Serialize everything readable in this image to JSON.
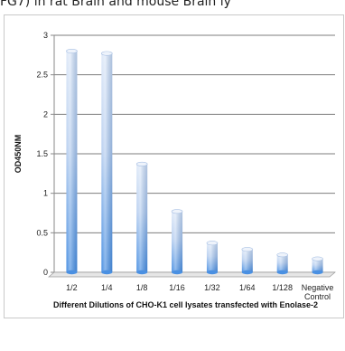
{
  "header": {
    "text": "FG7) in rat Brain and mouse Brain ly"
  },
  "chart_data": {
    "type": "bar",
    "categories": [
      "1/2",
      "1/4",
      "1/8",
      "1/16",
      "1/32",
      "1/64",
      "1/128",
      "Negative Control"
    ],
    "category_lines": [
      [
        "1/2"
      ],
      [
        "1/4"
      ],
      [
        "1/8"
      ],
      [
        "1/16"
      ],
      [
        "1/32"
      ],
      [
        "1/64"
      ],
      [
        "1/128"
      ],
      [
        "Negative",
        "Control"
      ]
    ],
    "values": [
      2.8,
      2.77,
      1.37,
      0.77,
      0.37,
      0.29,
      0.22,
      0.17
    ],
    "title": "",
    "xlabel": "Different Dilutions of CHO-K1  cell lysates transfected with Enolase-2",
    "ylabel": "OD450NM",
    "ylim": [
      0,
      3
    ],
    "yticks": [
      "0",
      "0.5",
      "1",
      "1.5",
      "2",
      "2.5",
      "3"
    ],
    "ytick_values": [
      0,
      0.5,
      1,
      1.5,
      2,
      2.5,
      3
    ],
    "grid": true,
    "bar_color_top": "#dfe9f8",
    "bar_color_bottom": "#4a90e2"
  }
}
